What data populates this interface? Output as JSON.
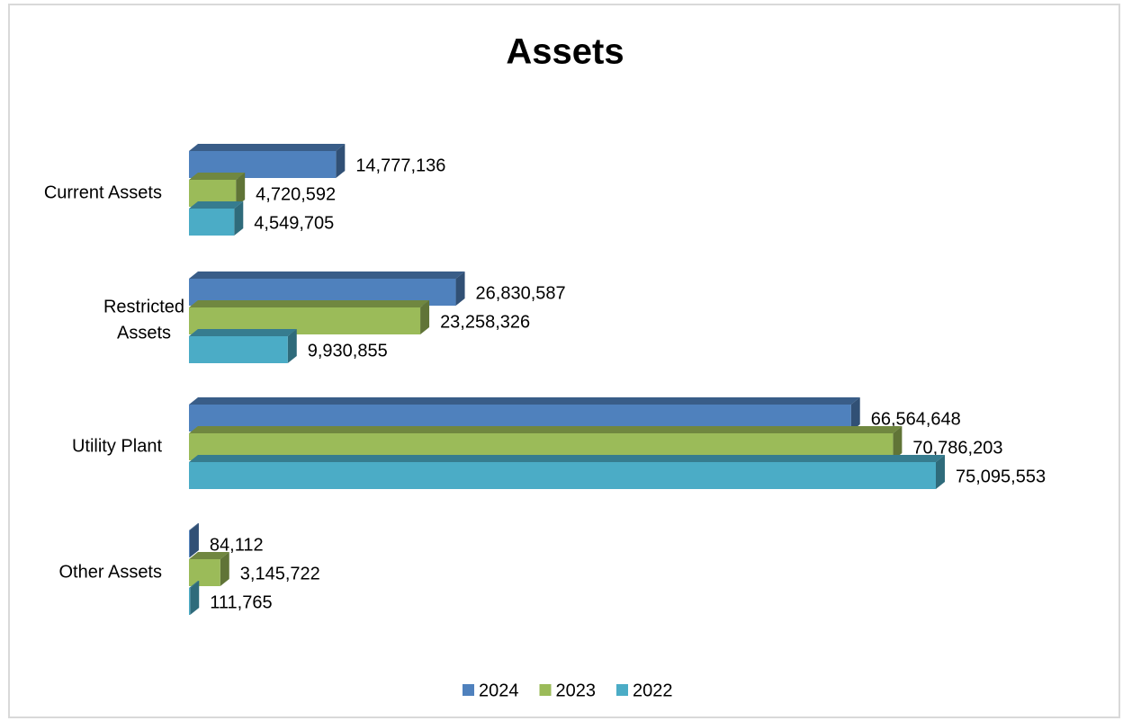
{
  "chart_data": {
    "type": "bar3d_horizontal",
    "title": "Assets",
    "categories": [
      "Current Assets",
      "Restricted Assets",
      "Utility Plant",
      "Other Assets"
    ],
    "series": [
      {
        "name": "2024",
        "color": "#4f81bd",
        "values": [
          14777136,
          26830587,
          66564648,
          84112
        ],
        "value_labels": [
          "14,777,136",
          "26,830,587",
          "66,564,648",
          "84,112"
        ]
      },
      {
        "name": "2023",
        "color": "#9bbb59",
        "values": [
          4720592,
          23258326,
          70786203,
          3145722
        ],
        "value_labels": [
          "4,720,592",
          "23,258,326",
          "70,786,203",
          "3,145,722"
        ]
      },
      {
        "name": "2022",
        "color": "#4bacc6",
        "values": [
          4549705,
          9930855,
          75095553,
          111765
        ],
        "value_labels": [
          "4,549,705",
          "9,930,855",
          "75,095,553",
          "111,765"
        ]
      }
    ],
    "legend": "bottom"
  }
}
